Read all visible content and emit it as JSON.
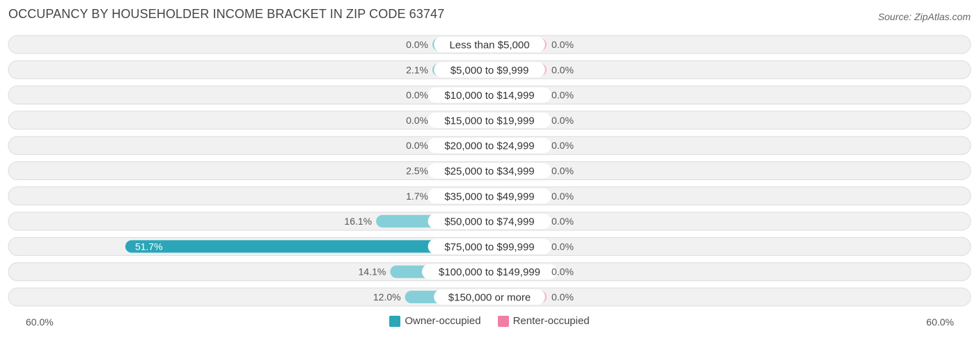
{
  "title": "OCCUPANCY BY HOUSEHOLDER INCOME BRACKET IN ZIP CODE 63747",
  "source": "Source: ZipAtlas.com",
  "colors": {
    "owner": "#2aa6b8",
    "owner_light": "#86cfd8",
    "renter": "#f27fa3",
    "renter_light": "#f7b2c8",
    "row_bg": "#f1f1f1",
    "row_border": "#dcdcdc"
  },
  "axis": {
    "left_label": "60.0%",
    "right_label": "60.0%"
  },
  "legend": [
    {
      "label": "Owner-occupied",
      "color": "#2aa6b8"
    },
    {
      "label": "Renter-occupied",
      "color": "#f27fa3"
    }
  ],
  "chart_data": {
    "type": "bar",
    "orientation": "horizontal-diverging",
    "title": "OCCUPANCY BY HOUSEHOLDER INCOME BRACKET IN ZIP CODE 63747",
    "xlim": [
      -60,
      60
    ],
    "categories": [
      "Less than $5,000",
      "$5,000 to $9,999",
      "$10,000 to $14,999",
      "$15,000 to $19,999",
      "$20,000 to $24,999",
      "$25,000 to $34,999",
      "$35,000 to $49,999",
      "$50,000 to $74,999",
      "$75,000 to $99,999",
      "$100,000 to $149,999",
      "$150,000 or more"
    ],
    "series": [
      {
        "name": "Owner-occupied",
        "values": [
          0.0,
          2.1,
          0.0,
          0.0,
          0.0,
          2.5,
          1.7,
          16.1,
          51.7,
          14.1,
          12.0
        ],
        "labels": [
          "0.0%",
          "2.1%",
          "0.0%",
          "0.0%",
          "0.0%",
          "2.5%",
          "1.7%",
          "16.1%",
          "51.7%",
          "14.1%",
          "12.0%"
        ]
      },
      {
        "name": "Renter-occupied",
        "values": [
          0.0,
          0.0,
          0.0,
          0.0,
          0.0,
          0.0,
          0.0,
          0.0,
          0.0,
          0.0,
          0.0
        ],
        "labels": [
          "0.0%",
          "0.0%",
          "0.0%",
          "0.0%",
          "0.0%",
          "0.0%",
          "0.0%",
          "0.0%",
          "0.0%",
          "0.0%",
          "0.0%"
        ]
      }
    ],
    "legend_position": "bottom-center"
  }
}
